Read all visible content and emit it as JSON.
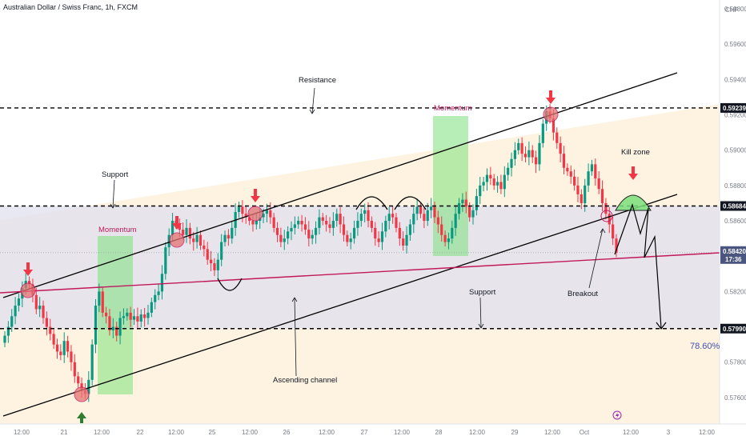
{
  "header": {
    "title": "Australian Dollar / Swiss Franc, 1h, FXCM",
    "currency_label": "CHF"
  },
  "colors": {
    "up": "#089981",
    "down": "#f23645",
    "channel_fill": "#fde9c8",
    "range_fill": "#dfe0ee",
    "momentum_fill": "#7be07b",
    "trendline": "#c2185b",
    "channel_line": "#000000",
    "arrow": "#f23645",
    "up_arrow": "#2e7d32",
    "fib": "#3f51b5"
  },
  "chart_data": {
    "type": "candlestick",
    "symbol": "AUDCHF",
    "timeframe": "1h",
    "ylim": [
      0.5745,
      0.5985
    ],
    "price_ticks": [
      "0.59800",
      "0.59600",
      "0.59400",
      "0.59200",
      "0.59000",
      "0.58800",
      "0.58600",
      "0.58400",
      "0.58200",
      "0.58000",
      "0.57800",
      "0.57600"
    ],
    "time_ticks": [
      "12:00",
      "21",
      "12:00",
      "22",
      "12:00",
      "25",
      "12:00",
      "26",
      "12:00",
      "27",
      "12:00",
      "28",
      "12:00",
      "29",
      "12:00",
      "Oct",
      "12:00",
      "3",
      "12:00"
    ],
    "key_levels": [
      {
        "label": "0.59239",
        "value": 0.59239,
        "style": "dashed"
      },
      {
        "label": "0.58684",
        "value": 0.58684,
        "style": "dashed"
      },
      {
        "label": "0.57990",
        "value": 0.5799,
        "style": "dashed"
      }
    ],
    "current_price": {
      "label": "0.58420",
      "countdown": "17:36",
      "value": 0.5842
    },
    "fib_label": "78.60%",
    "closes": [
      0.5795,
      0.58,
      0.5806,
      0.5812,
      0.5816,
      0.5822,
      0.5826,
      0.5824,
      0.5818,
      0.581,
      0.5812,
      0.5805,
      0.58,
      0.5796,
      0.579,
      0.5786,
      0.5784,
      0.5792,
      0.5786,
      0.578,
      0.5772,
      0.5768,
      0.5764,
      0.5762,
      0.577,
      0.579,
      0.5812,
      0.582,
      0.5808,
      0.5806,
      0.5798,
      0.58,
      0.5795,
      0.5805,
      0.5806,
      0.5808,
      0.5804,
      0.5806,
      0.5803,
      0.5807,
      0.5805,
      0.5808,
      0.5814,
      0.5818,
      0.582,
      0.583,
      0.5845,
      0.5852,
      0.586,
      0.5858,
      0.5855,
      0.5852,
      0.5856,
      0.585,
      0.5848,
      0.5852,
      0.5846,
      0.5844,
      0.5838,
      0.5836,
      0.5832,
      0.5838,
      0.5848,
      0.5852,
      0.585,
      0.5856,
      0.5865,
      0.5868,
      0.5864,
      0.5862,
      0.586,
      0.5858,
      0.586,
      0.5862,
      0.5864,
      0.5866,
      0.5862,
      0.5856,
      0.5852,
      0.5848,
      0.585,
      0.5854,
      0.5856,
      0.5858,
      0.586,
      0.5858,
      0.5855,
      0.585,
      0.5852,
      0.5856,
      0.5862,
      0.586,
      0.5858,
      0.5856,
      0.586,
      0.5864,
      0.5858,
      0.5852,
      0.5848,
      0.585,
      0.5856,
      0.586,
      0.5864,
      0.5866,
      0.586,
      0.5856,
      0.585,
      0.5848,
      0.5854,
      0.586,
      0.5864,
      0.5862,
      0.5856,
      0.585,
      0.5846,
      0.5852,
      0.5858,
      0.5864,
      0.5868,
      0.5864,
      0.586,
      0.5866,
      0.5868,
      0.5862,
      0.5858,
      0.5852,
      0.5848,
      0.585,
      0.5856,
      0.5864,
      0.587,
      0.5872,
      0.5868,
      0.5862,
      0.5866,
      0.5874,
      0.588,
      0.5882,
      0.5886,
      0.5884,
      0.588,
      0.5882,
      0.5878,
      0.5886,
      0.589,
      0.5895,
      0.59,
      0.5904,
      0.5898,
      0.5896,
      0.59,
      0.5896,
      0.5892,
      0.5904,
      0.5915,
      0.5922,
      0.5918,
      0.591,
      0.5904,
      0.5898,
      0.589,
      0.5888,
      0.5885,
      0.588,
      0.5875,
      0.587,
      0.588,
      0.5888,
      0.5892,
      0.5884,
      0.5878,
      0.587,
      0.5864,
      0.5858,
      0.585,
      0.5842
    ]
  },
  "annotations": {
    "resistance": "Resistance",
    "support_top": "Support",
    "support_bottom": "Support",
    "momentum_left": "Momentum",
    "momentum_right": "Momentum",
    "ascending_channel": "Ascending channel",
    "breakout": "Breakout",
    "kill_zone": "Kill zone"
  },
  "icons": {
    "lightning": "lightning-icon"
  }
}
